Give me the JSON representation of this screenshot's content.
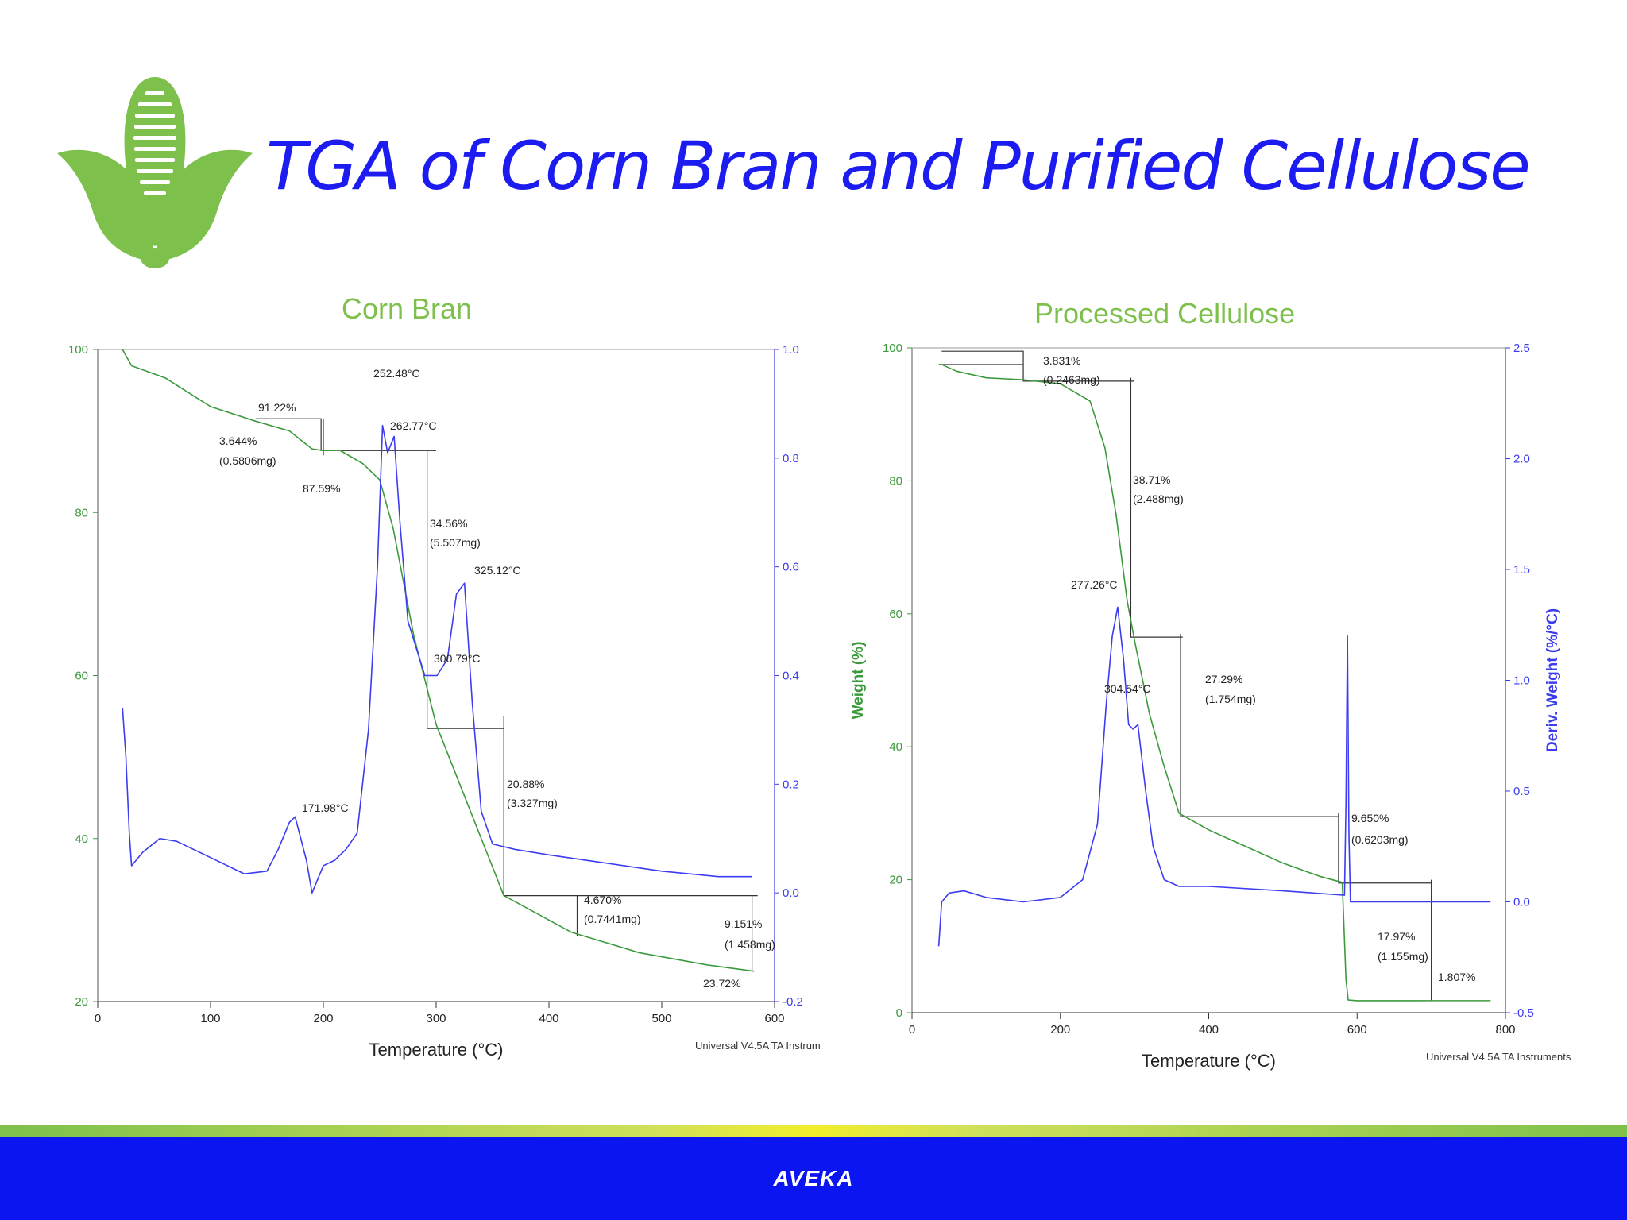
{
  "slide": {
    "title": "TGA of Corn Bran and Purified Cellulose",
    "footer": "AVEKA",
    "colors": {
      "title": "#1c1cf0",
      "brand_green": "#7dc04b",
      "footer_blue": "#0a15f2",
      "weight_curve": "#3c9a3c",
      "deriv_curve": "#3c3cf0"
    },
    "logo_icon": "corn-cob-leaves-icon"
  },
  "chart_data": [
    {
      "type": "line",
      "title": "Corn Bran",
      "xlabel": "Temperature (°C)",
      "ylabel": "",
      "y2label": "",
      "xlim": [
        0,
        600
      ],
      "ylim": [
        20,
        100
      ],
      "y2lim": [
        -0.2,
        1.0
      ],
      "xticks": [
        0,
        100,
        200,
        300,
        400,
        500,
        600
      ],
      "yticks": [
        20,
        40,
        60,
        80,
        100
      ],
      "y2ticks": [
        "-0.2",
        "0.0",
        "0.2",
        "0.4",
        "0.6",
        "0.8",
        "1.0"
      ],
      "instrument_note": "Universal V4.5A TA Instrum",
      "series": [
        {
          "axis": "left",
          "x": [
            22,
            30,
            60,
            100,
            140,
            170,
            190,
            200,
            215,
            235,
            250,
            262,
            280,
            300,
            320,
            340,
            360,
            380,
            420,
            480,
            540,
            582
          ],
          "values": [
            100,
            98,
            96.5,
            93,
            91.2,
            90,
            87.8,
            87.6,
            87.6,
            86,
            84,
            78,
            65,
            54,
            47,
            40,
            33,
            31.5,
            28.5,
            26,
            24.5,
            23.72
          ]
        },
        {
          "axis": "right",
          "x": [
            22,
            25,
            28,
            30,
            40,
            55,
            70,
            100,
            130,
            150,
            160,
            170,
            175,
            185,
            190,
            200,
            210,
            220,
            230,
            240,
            248,
            252.48,
            257,
            262.77,
            268,
            275,
            290,
            300.79,
            310,
            318,
            325.12,
            332,
            340,
            350,
            370,
            400,
            450,
            500,
            550,
            580
          ],
          "values": [
            0.34,
            0.25,
            0.11,
            0.05,
            0.075,
            0.1,
            0.095,
            0.065,
            0.035,
            0.04,
            0.08,
            0.13,
            0.14,
            0.06,
            0.0,
            0.05,
            0.06,
            0.08,
            0.11,
            0.3,
            0.6,
            0.86,
            0.81,
            0.84,
            0.68,
            0.5,
            0.4,
            0.4,
            0.43,
            0.55,
            0.57,
            0.35,
            0.15,
            0.09,
            0.08,
            0.07,
            0.055,
            0.04,
            0.03,
            0.03
          ]
        }
      ],
      "annotations": [
        "252.48°C",
        "91.22%",
        "262.77°C",
        "3.644%",
        "(0.5806mg)",
        "87.59%",
        "34.56%",
        "(5.507mg)",
        "325.12°C",
        "300.79°C",
        "171.98°C",
        "20.88%",
        "(3.327mg)",
        "4.670%",
        "(0.7441mg)",
        "9.151%",
        "(1.458mg)",
        "23.72%"
      ]
    },
    {
      "type": "line",
      "title": "Processed Cellulose",
      "xlabel": "Temperature (°C)",
      "ylabel": "Weight (%)",
      "y2label": "Deriv. Weight (%/°C)",
      "xlim": [
        0,
        800
      ],
      "ylim": [
        0,
        100
      ],
      "y2lim": [
        -0.5,
        2.5
      ],
      "xticks": [
        0,
        200,
        400,
        600,
        800
      ],
      "yticks": [
        0,
        20,
        40,
        60,
        80,
        100
      ],
      "y2ticks": [
        "-0.5",
        "0.0",
        "0.5",
        "1.0",
        "1.5",
        "2.0",
        "2.5"
      ],
      "instrument_note": "Universal V4.5A TA Instruments",
      "series": [
        {
          "axis": "left",
          "x": [
            36,
            40,
            60,
            100,
            150,
            200,
            240,
            260,
            275,
            290,
            300,
            320,
            340,
            360,
            400,
            450,
            500,
            550,
            580,
            585,
            588,
            600,
            700,
            780
          ],
          "values": [
            97.5,
            97.5,
            96.5,
            95.5,
            95.2,
            94.6,
            92,
            85,
            75,
            62,
            56,
            45,
            37,
            30,
            27.5,
            25,
            22.5,
            20.5,
            19.6,
            5,
            1.9,
            1.8,
            1.807,
            1.807
          ]
        },
        {
          "axis": "right",
          "x": [
            36,
            40,
            50,
            70,
            100,
            150,
            200,
            230,
            250,
            262,
            270,
            277.26,
            285,
            292,
            298,
            304.54,
            315,
            325,
            340,
            360,
            400,
            500,
            583,
            585,
            587,
            589,
            591,
            600,
            700,
            780
          ],
          "values": [
            -0.2,
            0.0,
            0.04,
            0.05,
            0.02,
            0.0,
            0.02,
            0.1,
            0.35,
            0.9,
            1.2,
            1.33,
            1.1,
            0.8,
            0.78,
            0.8,
            0.5,
            0.25,
            0.1,
            0.07,
            0.07,
            0.05,
            0.03,
            0.45,
            1.2,
            0.3,
            0.0,
            0.0,
            0.0,
            0.0
          ]
        }
      ],
      "annotations": [
        "3.831%",
        "(0.2463mg)",
        "38.71%",
        "(2.488mg)",
        "277.26°C",
        "304.54°C",
        "27.29%",
        "(1.754mg)",
        "9.650%",
        "(0.6203mg)",
        "17.97%",
        "(1.155mg)",
        "1.807%"
      ]
    }
  ]
}
